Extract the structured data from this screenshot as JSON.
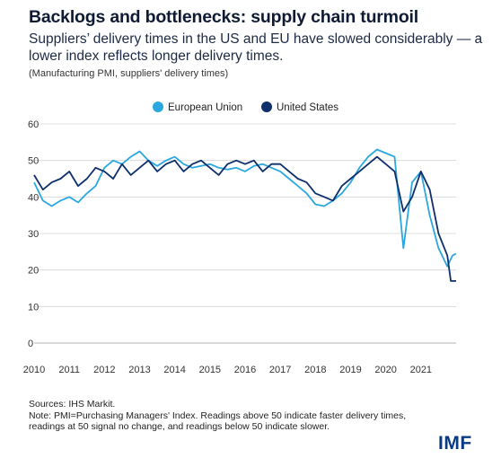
{
  "title": "Backlogs and bottlenecks: supply chain turmoil",
  "subtitle": "Suppliers’ delivery times in the US and EU have slowed considerably — a lower index reflects longer delivery times.",
  "note_top": "(Manufacturing PMI, suppliers' delivery times)",
  "sources": [
    "Sources: IHS Markit.",
    "Note: PMI=Purchasing Managers' Index. Readings above 50 indicate faster delivery times,",
    "readings at 50 signal no change, and readings below 50 indicate slower."
  ],
  "logo": "IMF",
  "chart_data": {
    "type": "line",
    "x_start_year": 2010,
    "x_end_year": 2022,
    "xticks": [
      "2010",
      "2011",
      "2012",
      "2013",
      "2014",
      "2015",
      "2016",
      "2017",
      "2018",
      "2019",
      "2020",
      "2021"
    ],
    "ylim": [
      0,
      60
    ],
    "yticks": [
      0,
      10,
      20,
      30,
      40,
      50,
      60
    ],
    "grid": true,
    "legend": "top-center",
    "series": [
      {
        "name": "European Union",
        "color": "#2aa7df",
        "points": [
          [
            2010.0,
            44
          ],
          [
            2010.25,
            39
          ],
          [
            2010.5,
            37.5
          ],
          [
            2010.75,
            39
          ],
          [
            2011.0,
            40
          ],
          [
            2011.25,
            38.5
          ],
          [
            2011.5,
            41
          ],
          [
            2011.75,
            43
          ],
          [
            2012.0,
            48
          ],
          [
            2012.25,
            50
          ],
          [
            2012.5,
            49
          ],
          [
            2012.75,
            51
          ],
          [
            2013.0,
            52.5
          ],
          [
            2013.25,
            50
          ],
          [
            2013.5,
            48.5
          ],
          [
            2013.75,
            50
          ],
          [
            2014.0,
            51
          ],
          [
            2014.25,
            49
          ],
          [
            2014.5,
            48
          ],
          [
            2014.75,
            48.5
          ],
          [
            2015.0,
            49
          ],
          [
            2015.25,
            48
          ],
          [
            2015.5,
            47.5
          ],
          [
            2015.75,
            48
          ],
          [
            2016.0,
            47
          ],
          [
            2016.25,
            48.5
          ],
          [
            2016.5,
            49
          ],
          [
            2016.75,
            48
          ],
          [
            2017.0,
            47
          ],
          [
            2017.25,
            45
          ],
          [
            2017.5,
            43
          ],
          [
            2017.75,
            41
          ],
          [
            2018.0,
            38
          ],
          [
            2018.25,
            37.5
          ],
          [
            2018.5,
            39
          ],
          [
            2018.75,
            41
          ],
          [
            2019.0,
            44
          ],
          [
            2019.25,
            48
          ],
          [
            2019.5,
            51
          ],
          [
            2019.75,
            53
          ],
          [
            2020.0,
            52
          ],
          [
            2020.25,
            51
          ],
          [
            2020.5,
            26
          ],
          [
            2020.75,
            44
          ],
          [
            2021.0,
            47
          ],
          [
            2021.25,
            35
          ],
          [
            2021.5,
            26
          ],
          [
            2021.75,
            21
          ],
          [
            2021.9,
            24
          ],
          [
            2022.0,
            24.5
          ]
        ]
      },
      {
        "name": "United States",
        "color": "#0d2f6b",
        "points": [
          [
            2010.0,
            46
          ],
          [
            2010.25,
            42
          ],
          [
            2010.5,
            44
          ],
          [
            2010.75,
            45
          ],
          [
            2011.0,
            47
          ],
          [
            2011.25,
            43
          ],
          [
            2011.5,
            45
          ],
          [
            2011.75,
            48
          ],
          [
            2012.0,
            47
          ],
          [
            2012.25,
            45
          ],
          [
            2012.5,
            49
          ],
          [
            2012.75,
            46
          ],
          [
            2013.0,
            48
          ],
          [
            2013.25,
            50
          ],
          [
            2013.5,
            47
          ],
          [
            2013.75,
            49
          ],
          [
            2014.0,
            50
          ],
          [
            2014.25,
            47
          ],
          [
            2014.5,
            49
          ],
          [
            2014.75,
            50
          ],
          [
            2015.0,
            48
          ],
          [
            2015.25,
            46
          ],
          [
            2015.5,
            49
          ],
          [
            2015.75,
            50
          ],
          [
            2016.0,
            49
          ],
          [
            2016.25,
            50
          ],
          [
            2016.5,
            47
          ],
          [
            2016.75,
            49
          ],
          [
            2017.0,
            49
          ],
          [
            2017.25,
            47
          ],
          [
            2017.5,
            45
          ],
          [
            2017.75,
            44
          ],
          [
            2018.0,
            41
          ],
          [
            2018.25,
            40
          ],
          [
            2018.5,
            39
          ],
          [
            2018.75,
            43
          ],
          [
            2019.0,
            45
          ],
          [
            2019.25,
            47
          ],
          [
            2019.5,
            49
          ],
          [
            2019.75,
            51
          ],
          [
            2020.0,
            49
          ],
          [
            2020.25,
            47
          ],
          [
            2020.5,
            36
          ],
          [
            2020.75,
            40
          ],
          [
            2021.0,
            47
          ],
          [
            2021.25,
            42
          ],
          [
            2021.5,
            30
          ],
          [
            2021.75,
            24
          ],
          [
            2021.85,
            17
          ],
          [
            2022.0,
            17
          ]
        ]
      }
    ]
  }
}
